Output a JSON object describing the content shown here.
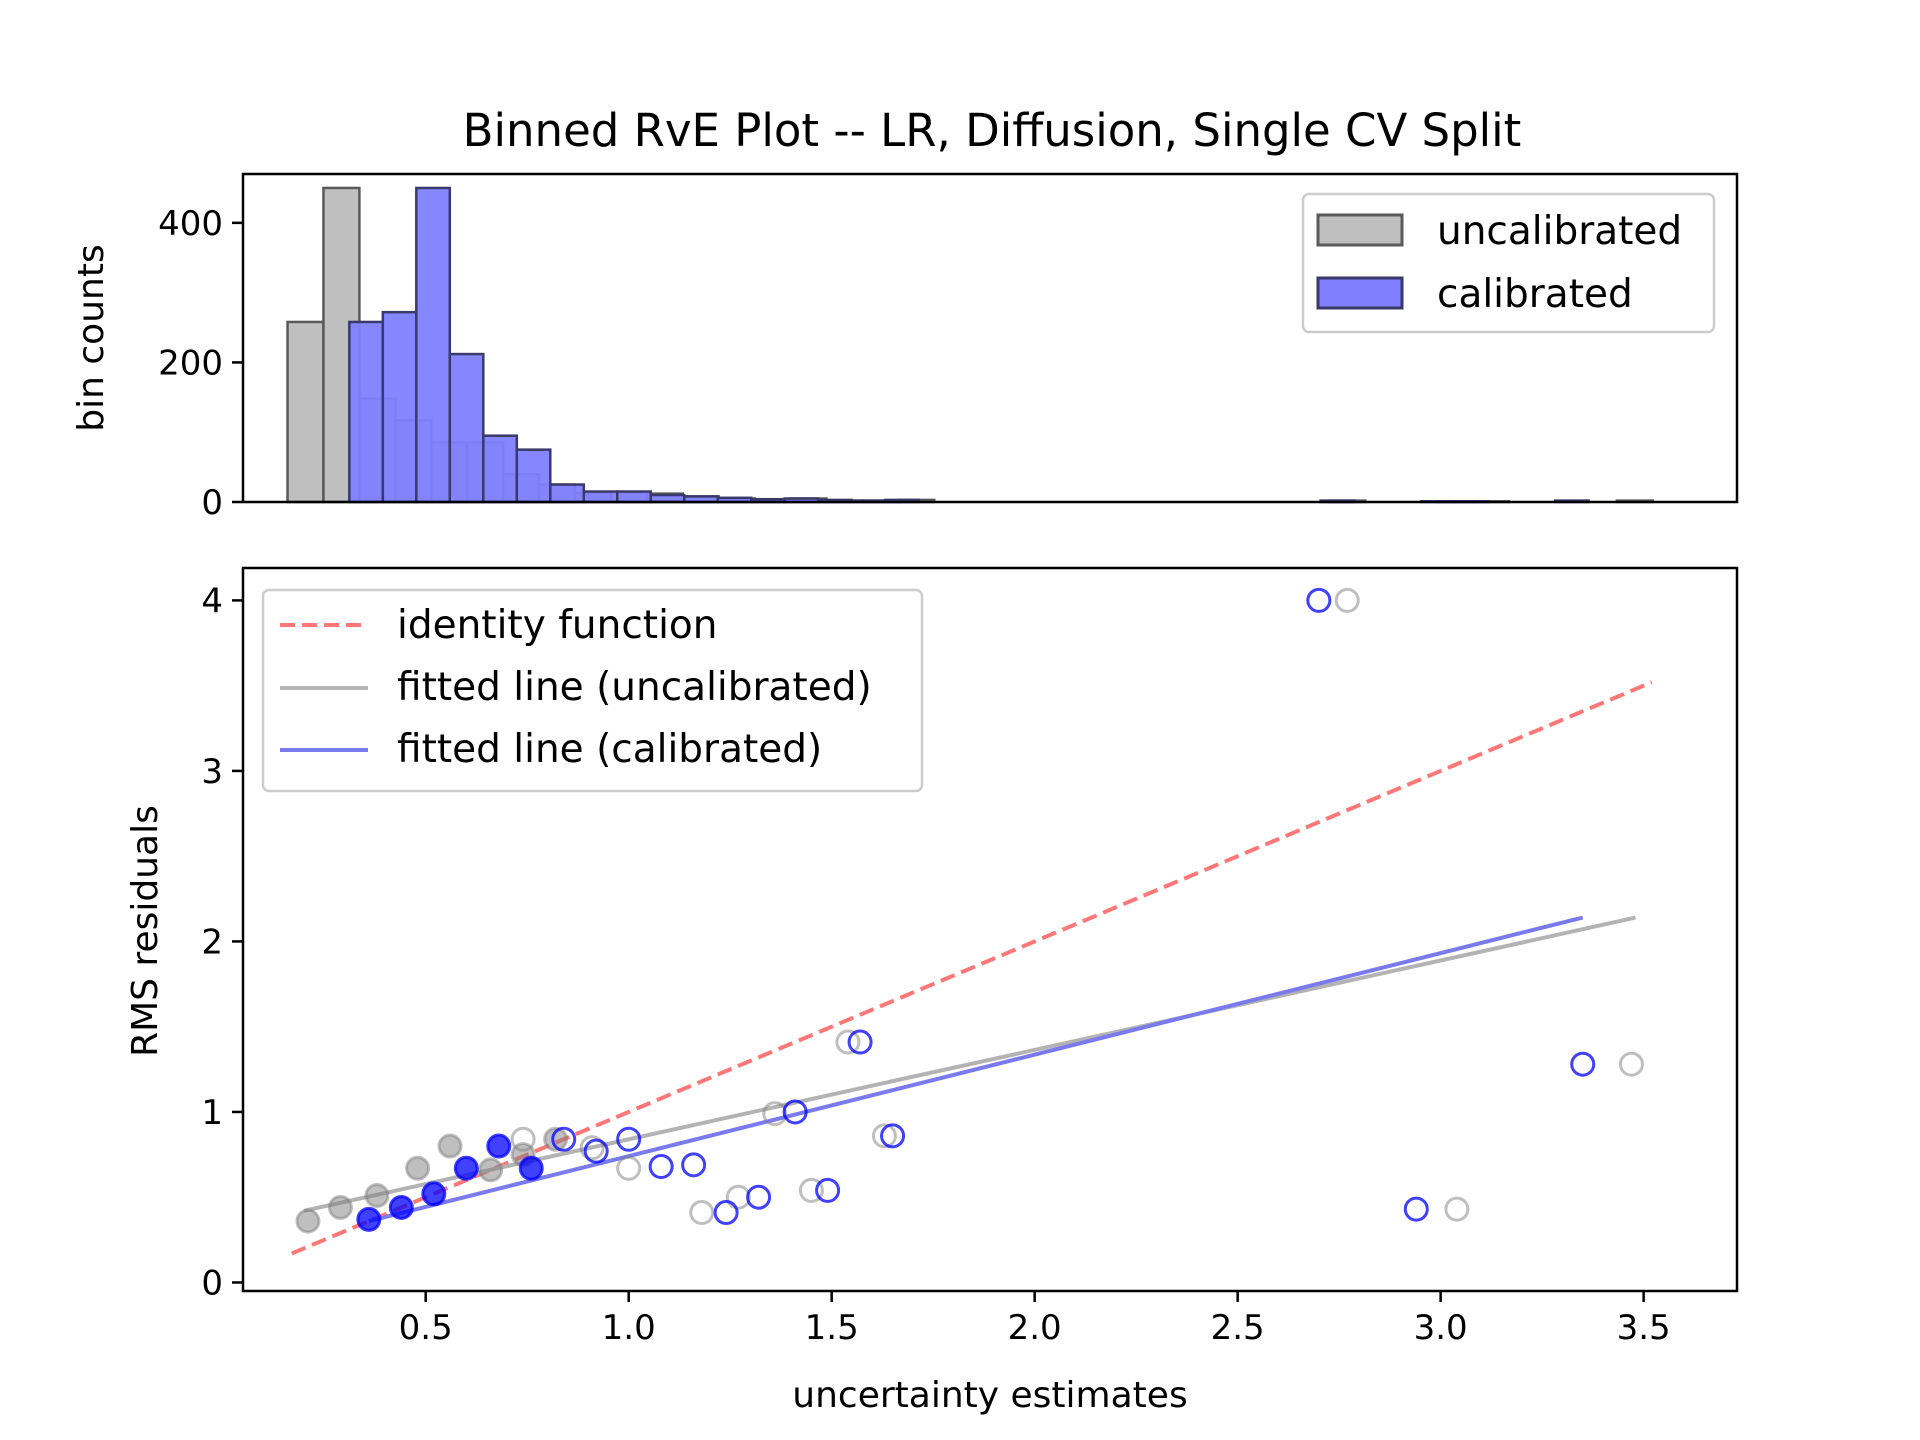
{
  "title": "Binned RvE Plot -- LR, Diffusion, Single CV Split",
  "colors": {
    "uncalibrated": "#808080",
    "calibrated": "#0000ff",
    "identity": "#ff7777",
    "uncal_fill": "#bfbfbf",
    "cal_fill": "#7f7fff",
    "uncal_line": "#b3b3b3",
    "cal_line": "#7a7aef"
  },
  "chart_data": [
    {
      "type": "bar",
      "ylabel": "bin counts",
      "xlim": [
        0.05,
        3.73
      ],
      "ylim": [
        0,
        470
      ],
      "yticks": [
        0,
        200,
        400
      ],
      "legend_position": "upper right",
      "series": [
        {
          "name": "uncalibrated",
          "bin_width": 0.0885,
          "bins": [
            [
              0.1597,
              258
            ],
            [
              0.2482,
              450
            ],
            [
              0.3367,
              148
            ],
            [
              0.4252,
              117
            ],
            [
              0.5137,
              85
            ],
            [
              0.6022,
              85
            ],
            [
              0.6907,
              40
            ],
            [
              0.7792,
              25
            ],
            [
              0.8677,
              13
            ],
            [
              0.9562,
              13
            ],
            [
              1.0447,
              12
            ],
            [
              1.1332,
              8
            ],
            [
              1.2217,
              5
            ],
            [
              1.3102,
              3
            ],
            [
              1.3987,
              5
            ],
            [
              1.4872,
              2
            ],
            [
              1.5757,
              2
            ],
            [
              1.6642,
              3
            ],
            [
              2.7262,
              2
            ],
            [
              2.9917,
              1
            ],
            [
              3.0802,
              1
            ],
            [
              3.4342,
              2
            ]
          ]
        },
        {
          "name": "calibrated",
          "bin_width": 0.0825,
          "bins": [
            [
              0.3119,
              258
            ],
            [
              0.3944,
              272
            ],
            [
              0.4769,
              450
            ],
            [
              0.5594,
              212
            ],
            [
              0.6419,
              95
            ],
            [
              0.7244,
              75
            ],
            [
              0.8069,
              25
            ],
            [
              0.8894,
              15
            ],
            [
              0.9719,
              15
            ],
            [
              1.0544,
              10
            ],
            [
              1.1369,
              8
            ],
            [
              1.2194,
              6
            ],
            [
              1.3019,
              4
            ],
            [
              1.3844,
              5
            ],
            [
              1.4669,
              3
            ],
            [
              1.5494,
              2
            ],
            [
              1.6319,
              3
            ],
            [
              2.7044,
              2
            ],
            [
              2.9519,
              1
            ],
            [
              3.0344,
              1
            ],
            [
              3.2819,
              2
            ]
          ]
        }
      ]
    },
    {
      "type": "scatter",
      "xlabel": "uncertainty estimates",
      "ylabel": "RMS residuals",
      "xlim": [
        0.05,
        3.73
      ],
      "ylim": [
        -0.05,
        4.19
      ],
      "xticks": [
        0.5,
        1.0,
        1.5,
        2.0,
        2.5,
        3.0,
        3.5
      ],
      "xtick_labels": [
        "0.5",
        "1.0",
        "1.5",
        "2.0",
        "2.5",
        "3.0",
        "3.5"
      ],
      "yticks": [
        0,
        1,
        2,
        3,
        4
      ],
      "legend_position": "upper left",
      "lines": [
        {
          "name": "identity function",
          "style": "dashed",
          "x": [
            0.17,
            3.52
          ],
          "y": [
            0.17,
            3.52
          ]
        },
        {
          "name": "fitted line (uncalibrated)",
          "style": "solid",
          "x": [
            0.2,
            3.48
          ],
          "y": [
            0.42,
            2.14
          ]
        },
        {
          "name": "fitted line (calibrated)",
          "style": "solid",
          "x": [
            0.36,
            3.35
          ],
          "y": [
            0.36,
            2.14
          ]
        }
      ],
      "series": [
        {
          "name": "uncalibrated",
          "filled_points": [
            [
              0.21,
              0.36
            ],
            [
              0.29,
              0.44
            ],
            [
              0.38,
              0.51
            ],
            [
              0.48,
              0.67
            ],
            [
              0.56,
              0.8
            ],
            [
              0.66,
              0.66
            ],
            [
              0.74,
              0.75
            ],
            [
              0.82,
              0.84
            ]
          ],
          "open_points": [
            [
              0.74,
              0.84
            ],
            [
              0.91,
              0.79
            ],
            [
              1.0,
              0.67
            ],
            [
              1.18,
              0.41
            ],
            [
              1.27,
              0.5
            ],
            [
              1.36,
              0.99
            ],
            [
              1.45,
              0.54
            ],
            [
              1.54,
              1.41
            ],
            [
              1.63,
              0.86
            ],
            [
              2.77,
              4.0
            ],
            [
              3.04,
              0.43
            ],
            [
              3.47,
              1.28
            ]
          ]
        },
        {
          "name": "calibrated",
          "filled_points": [
            [
              0.36,
              0.37
            ],
            [
              0.44,
              0.44
            ],
            [
              0.52,
              0.52
            ],
            [
              0.6,
              0.67
            ],
            [
              0.68,
              0.8
            ],
            [
              0.76,
              0.67
            ]
          ],
          "open_points": [
            [
              0.84,
              0.84
            ],
            [
              0.92,
              0.77
            ],
            [
              1.0,
              0.84
            ],
            [
              1.08,
              0.68
            ],
            [
              1.16,
              0.69
            ],
            [
              1.24,
              0.41
            ],
            [
              1.32,
              0.5
            ],
            [
              1.41,
              1.0
            ],
            [
              1.49,
              0.54
            ],
            [
              1.57,
              1.41
            ],
            [
              1.65,
              0.86
            ],
            [
              2.7,
              4.0
            ],
            [
              2.94,
              0.43
            ],
            [
              3.35,
              1.28
            ]
          ]
        }
      ]
    }
  ]
}
